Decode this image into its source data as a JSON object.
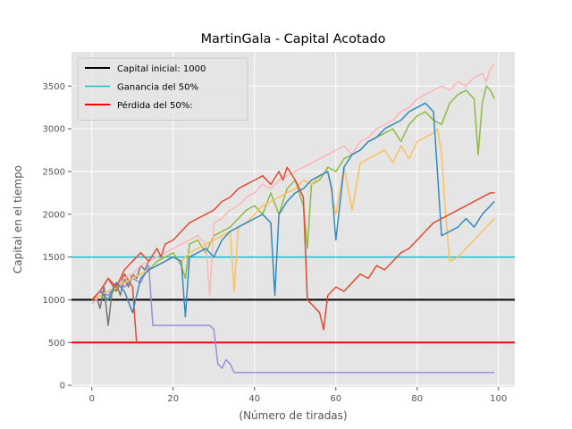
{
  "chart_data": {
    "type": "line",
    "title": "MartinGala - Capital Acotado",
    "xlabel": "(Número de tiradas)",
    "ylabel": "Capital en el tiempo",
    "xlim": [
      -5,
      104
    ],
    "ylim": [
      -20,
      3900
    ],
    "xticks": [
      0,
      20,
      40,
      60,
      80,
      100
    ],
    "yticks": [
      0,
      500,
      1000,
      1500,
      2000,
      2500,
      3000,
      3500
    ],
    "grid": true,
    "style": "ggplot",
    "legend_position": "top-left",
    "reference_lines": [
      {
        "name": "Capital inicial: 1000",
        "y": 1000,
        "color": "#000000"
      },
      {
        "name": "Ganancia del 50%",
        "y": 1500,
        "color": "#17becf"
      },
      {
        "name": "Pérdida del 50%:",
        "y": 500,
        "color": "#ff0000"
      }
    ],
    "series": [
      {
        "color": "#E24A33",
        "x": [
          0,
          2,
          4,
          6,
          8,
          10,
          11
        ],
        "values": [
          1000,
          1100,
          1250,
          1100,
          1300,
          1150,
          500
        ]
      },
      {
        "color": "#988ED5",
        "x": [
          0,
          2,
          4,
          6,
          8,
          10,
          12,
          14,
          15,
          18,
          21,
          24,
          27,
          29,
          30,
          31,
          32,
          33,
          34,
          35,
          40,
          45,
          50,
          55,
          60,
          65,
          70,
          75,
          80,
          85,
          90,
          95,
          99
        ],
        "values": [
          1000,
          1100,
          1050,
          1200,
          1150,
          1250,
          1200,
          1400,
          700,
          700,
          700,
          700,
          700,
          700,
          650,
          250,
          200,
          300,
          250,
          150,
          150,
          150,
          150,
          150,
          150,
          150,
          150,
          150,
          150,
          150,
          150,
          150,
          150
        ]
      },
      {
        "color": "#777777",
        "x": [
          0,
          1,
          2,
          3,
          4,
          5,
          6,
          7,
          8,
          9,
          10,
          11,
          12,
          13,
          14
        ],
        "values": [
          1000,
          1050,
          900,
          1150,
          700,
          1100,
          1200,
          1050,
          1250,
          1150,
          1300,
          1250,
          1400,
          1350,
          1450
        ]
      },
      {
        "color": "#8EBA42",
        "x": [
          0,
          2,
          4,
          6,
          8,
          10,
          12,
          14,
          16,
          18,
          20,
          22,
          23,
          24,
          26,
          28,
          30,
          32,
          34,
          36,
          38,
          40,
          42,
          44,
          46,
          48,
          50,
          52,
          53,
          54,
          56,
          58,
          60,
          62,
          64,
          66,
          68,
          70,
          72,
          74,
          76,
          78,
          80,
          82,
          84,
          86,
          88,
          90,
          92,
          94,
          95,
          96,
          97,
          98,
          99
        ],
        "values": [
          950,
          1050,
          1000,
          1150,
          1200,
          1250,
          1300,
          1350,
          1450,
          1500,
          1550,
          1400,
          1250,
          1650,
          1700,
          1550,
          1750,
          1800,
          1850,
          1950,
          2050,
          2100,
          2000,
          2250,
          2000,
          2300,
          2400,
          2100,
          1600,
          2350,
          2400,
          2550,
          2500,
          2650,
          2700,
          2750,
          2850,
          2900,
          2950,
          3000,
          2850,
          3050,
          3150,
          3200,
          3100,
          3050,
          3300,
          3400,
          3450,
          3350,
          2700,
          3300,
          3500,
          3450,
          3350
        ]
      },
      {
        "color": "#FFB5B8",
        "x": [
          0,
          2,
          4,
          6,
          8,
          10,
          12,
          14,
          16,
          18,
          20,
          22,
          24,
          26,
          28,
          29,
          30,
          32,
          34,
          36,
          38,
          40,
          42,
          44,
          46,
          48,
          50,
          52,
          54,
          56,
          58,
          60,
          62,
          64,
          66,
          68,
          70,
          72,
          74,
          76,
          78,
          80,
          82,
          84,
          86,
          88,
          90,
          92,
          94,
          96,
          97,
          98,
          99
        ],
        "values": [
          950,
          1050,
          1100,
          1150,
          1250,
          1300,
          1400,
          1450,
          1500,
          1550,
          1600,
          1650,
          1700,
          1750,
          1650,
          1050,
          1900,
          1950,
          2050,
          2100,
          2200,
          2250,
          2350,
          2300,
          2400,
          2450,
          2500,
          2550,
          2600,
          2650,
          2700,
          2750,
          2800,
          2700,
          2850,
          2900,
          3000,
          3050,
          3100,
          3200,
          3250,
          3350,
          3400,
          3450,
          3500,
          3450,
          3550,
          3500,
          3600,
          3650,
          3550,
          3700,
          3750
        ]
      },
      {
        "color": "#FBC15E",
        "x": [
          0,
          2,
          4,
          6,
          8,
          10,
          12,
          14,
          16,
          18,
          20,
          22,
          24,
          26,
          28,
          30,
          32,
          34,
          35,
          36,
          38,
          40,
          42,
          44,
          46,
          48,
          50,
          52,
          54,
          56,
          58,
          60,
          62,
          64,
          66,
          68,
          70,
          72,
          74,
          76,
          78,
          80,
          82,
          84,
          85,
          86,
          87,
          88,
          90,
          92,
          94,
          96,
          98,
          99
        ],
        "values": [
          1000,
          1050,
          1100,
          1150,
          1200,
          1250,
          1300,
          1350,
          1400,
          1450,
          1500,
          1450,
          1550,
          1600,
          1650,
          1700,
          1750,
          1800,
          1100,
          1850,
          1900,
          2000,
          2100,
          2150,
          2200,
          2250,
          2300,
          2400,
          2350,
          2450,
          2500,
          2000,
          2550,
          2050,
          2600,
          2650,
          2700,
          2750,
          2600,
          2800,
          2650,
          2850,
          2900,
          2950,
          3000,
          2700,
          2000,
          1450,
          1500,
          1600,
          1700,
          1800,
          1900,
          1950
        ]
      },
      {
        "color": "#348ABD",
        "x": [
          0,
          2,
          4,
          6,
          8,
          10,
          12,
          14,
          16,
          18,
          20,
          22,
          23,
          24,
          26,
          28,
          30,
          32,
          34,
          36,
          38,
          40,
          42,
          44,
          45,
          46,
          48,
          50,
          52,
          54,
          56,
          58,
          59,
          60,
          62,
          64,
          66,
          68,
          70,
          72,
          74,
          76,
          78,
          80,
          82,
          84,
          86,
          88,
          90,
          92,
          94,
          96,
          98,
          99
        ],
        "values": [
          1000,
          1100,
          1000,
          1200,
          1100,
          850,
          1250,
          1350,
          1400,
          1450,
          1500,
          1450,
          800,
          1500,
          1550,
          1600,
          1500,
          1700,
          1800,
          1850,
          1900,
          1950,
          2000,
          1900,
          1050,
          2000,
          2150,
          2250,
          2300,
          2400,
          2450,
          2500,
          2300,
          1700,
          2550,
          2700,
          2750,
          2850,
          2900,
          3000,
          3050,
          3100,
          3200,
          3250,
          3300,
          3200,
          1750,
          1800,
          1850,
          1950,
          1850,
          2000,
          2100,
          2150
        ]
      },
      {
        "color": "#E24A33",
        "x": [
          0,
          2,
          4,
          6,
          8,
          10,
          12,
          14,
          16,
          17,
          18,
          20,
          22,
          24,
          26,
          28,
          30,
          32,
          34,
          36,
          38,
          40,
          42,
          44,
          46,
          47,
          48,
          50,
          52,
          53,
          54,
          56,
          57,
          58,
          60,
          62,
          64,
          66,
          68,
          70,
          72,
          74,
          76,
          78,
          80,
          82,
          84,
          86,
          88,
          90,
          92,
          94,
          96,
          98,
          99
        ],
        "values": [
          1000,
          1100,
          1250,
          1150,
          1350,
          1450,
          1550,
          1450,
          1600,
          1500,
          1650,
          1700,
          1800,
          1900,
          1950,
          2000,
          2050,
          2150,
          2200,
          2300,
          2350,
          2400,
          2450,
          2350,
          2500,
          2400,
          2550,
          2400,
          2200,
          1000,
          950,
          850,
          650,
          1050,
          1150,
          1100,
          1200,
          1300,
          1250,
          1400,
          1350,
          1450,
          1550,
          1600,
          1700,
          1800,
          1900,
          1950,
          2000,
          2050,
          2100,
          2150,
          2200,
          2250,
          2250
        ]
      }
    ]
  }
}
